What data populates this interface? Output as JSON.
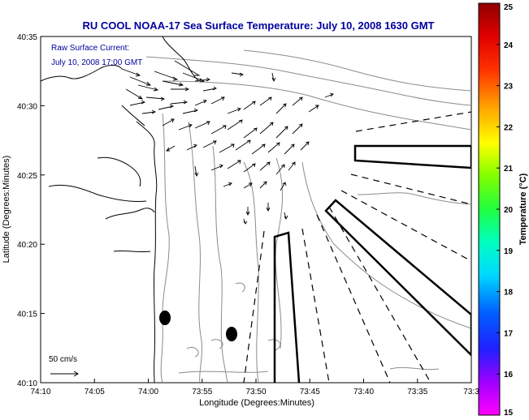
{
  "title": "RU COOL  NOAA-17  Sea Surface Temperature:  July 10, 2008 1630 GMT",
  "annotation": {
    "line1": "Raw Surface Current:",
    "line2": "July 10, 2008 17:00 GMT"
  },
  "scale_label": "50 cm/s",
  "x_axis": {
    "label": "Longitude (Degrees:Minutes)",
    "ticks": [
      "74:10",
      "74:05",
      "74:00",
      "73:55",
      "73:50",
      "73:45",
      "73:40",
      "73:35",
      "73:3"
    ]
  },
  "y_axis": {
    "label": "Latitude (Degrees:Minutes)",
    "ticks": [
      "40:10",
      "40:15",
      "40:20",
      "40:25",
      "40:30",
      "40:35"
    ]
  },
  "colorbar": {
    "label": "Temperature (°C)",
    "ticks": [
      "15",
      "16",
      "17",
      "18",
      "19",
      "20",
      "21",
      "22",
      "23",
      "24",
      "25"
    ],
    "min": 15,
    "max": 25,
    "colors": [
      "#ff00ff",
      "#8000ff",
      "#0000ff",
      "#0080ff",
      "#00ffff",
      "#00ff80",
      "#00ff00",
      "#80ff00",
      "#ffff00",
      "#ffa000",
      "#ff2000",
      "#900000"
    ]
  },
  "colors": {
    "title": "#0000a0",
    "annotation": "#0000a0",
    "land": "#000000",
    "contour": "#8c8c8c",
    "arrows": "#000000"
  }
}
